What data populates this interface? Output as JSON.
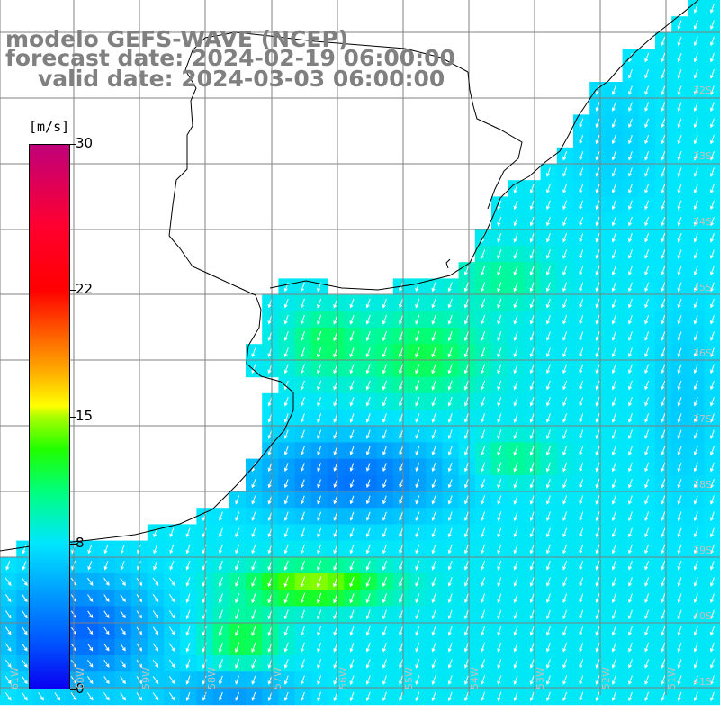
{
  "title": {
    "line1": "modelo GEFS-WAVE (NCEP)",
    "line2": "forecast date: 2024-02-19 06:00:00",
    "line3": "valid date: 2024-03-03 06:00:00"
  },
  "colorbar": {
    "unit": "[m/s]",
    "ticks": [
      "30",
      "22",
      "15",
      "8",
      "0"
    ],
    "tick_values": [
      30,
      22,
      15,
      8,
      0
    ],
    "min": 0,
    "max": 30,
    "colors": [
      "#0a00f0",
      "#0050ff",
      "#00a0ff",
      "#00e6ff",
      "#00ff80",
      "#20ff00",
      "#aaff00",
      "#ffff00",
      "#ffb000",
      "#ff6000",
      "#ff0000",
      "#c0007a"
    ]
  },
  "map": {
    "latitude_labels": [
      "32S",
      "33S",
      "34S",
      "35S",
      "36S",
      "37S",
      "38S",
      "39S",
      "40S",
      "41S"
    ],
    "longitude_labels": [
      "61W",
      "60W",
      "59W",
      "58W",
      "57W",
      "56W",
      "55W",
      "54W",
      "53W",
      "52W",
      "51W"
    ],
    "wind_direction": "southwest",
    "colors": {
      "land": "#ffffff",
      "coast": "#000000",
      "grid": "#808080",
      "arrows": "#ffffff"
    }
  }
}
